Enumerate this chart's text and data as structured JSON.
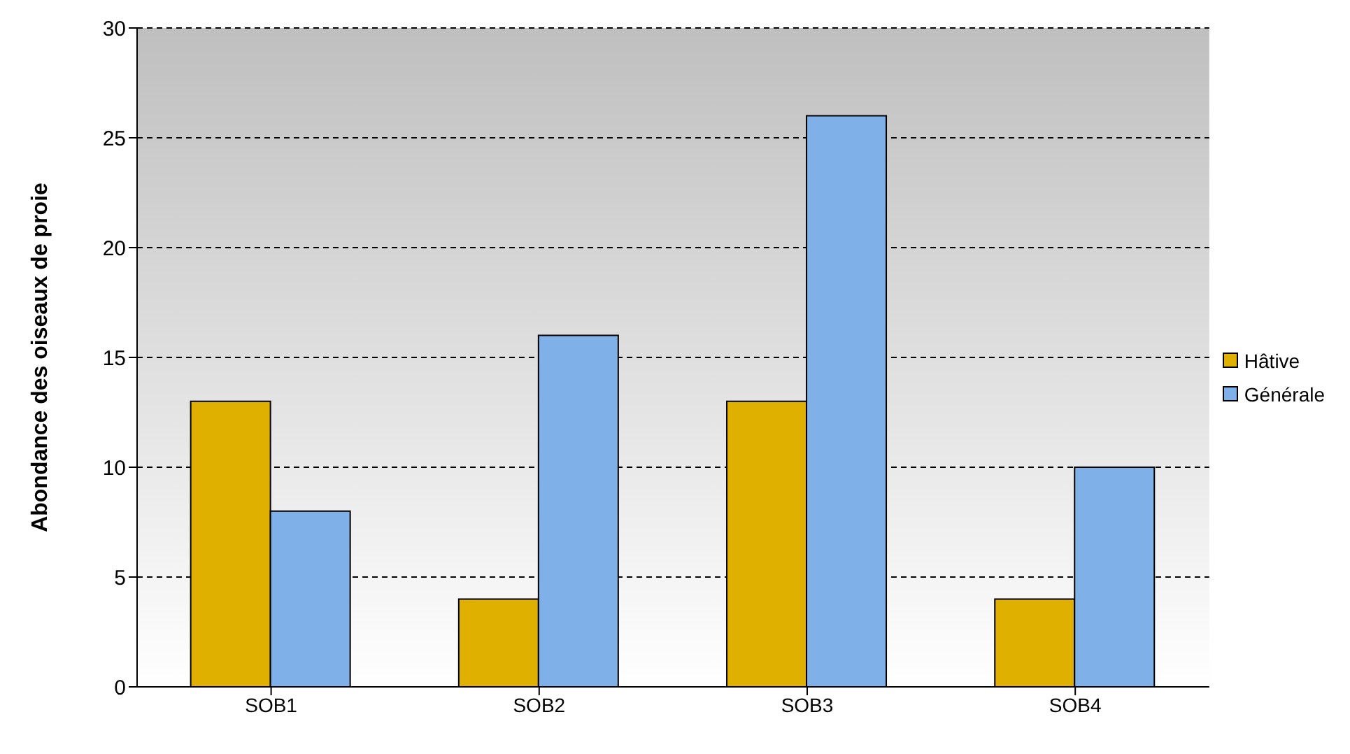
{
  "chart_data": {
    "type": "bar",
    "ylabel": "Abondance des oiseaux de proie",
    "categories": [
      "SOB1",
      "SOB2",
      "SOB3",
      "SOB4"
    ],
    "series": [
      {
        "name": "Hâtive",
        "color": "#e0b000",
        "values": [
          13,
          4,
          13,
          4
        ]
      },
      {
        "name": "Générale",
        "color": "#80b0e8",
        "values": [
          8,
          16,
          26,
          10
        ]
      }
    ],
    "ylim": [
      0,
      30
    ],
    "yticks": [
      0,
      5,
      10,
      15,
      20,
      25,
      30
    ],
    "grid": "y",
    "legend": "right"
  }
}
